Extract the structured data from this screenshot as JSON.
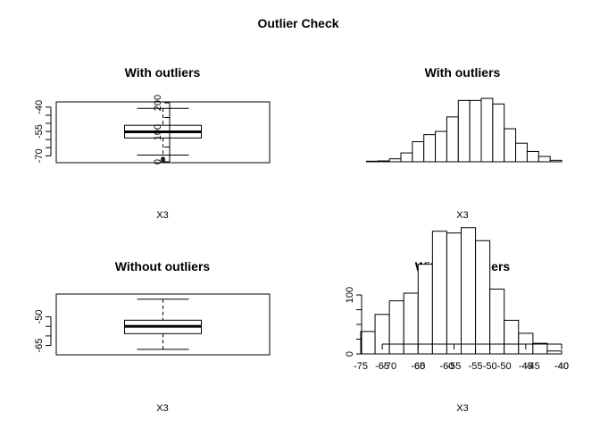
{
  "main_title": "Outlier Check",
  "chart_data": [
    {
      "panel": "top-left",
      "type": "boxplot",
      "title": "With outliers",
      "xlabel": "X3",
      "orientation": "horizontal",
      "axis_ticks": [
        -40,
        -55,
        -70
      ],
      "axis_range": [
        -72,
        -39
      ],
      "stats": {
        "min": -69.5,
        "q1": -59.0,
        "median": -55.2,
        "q3": -51.2,
        "max": -40.8
      },
      "outliers": [
        -71.8,
        -72.5,
        -73.0
      ],
      "grid": false
    },
    {
      "panel": "top-right",
      "type": "bar",
      "subtype": "histogram",
      "title": "With outliers",
      "xlabel": "X3",
      "x_ticks": [
        -75,
        -70,
        -65,
        -60,
        -55,
        -50,
        -45,
        -40
      ],
      "y_ticks": [
        0,
        100,
        200
      ],
      "xlim": [
        -75,
        -40
      ],
      "bin_edges": [
        -74,
        -72,
        -70,
        -68,
        -66,
        -64,
        -62,
        -60,
        -58,
        -56,
        -54,
        -52,
        -50,
        -48,
        -46,
        -44,
        -42,
        -40
      ],
      "values": [
        2,
        3,
        10,
        30,
        68,
        92,
        103,
        152,
        208,
        208,
        215,
        196,
        112,
        63,
        35,
        18,
        5
      ],
      "grid": false
    },
    {
      "panel": "bottom-left",
      "type": "boxplot",
      "title": "Without outliers",
      "xlabel": "X3",
      "orientation": "horizontal",
      "axis_ticks": [
        -50,
        -65
      ],
      "axis_range": [
        -68,
        -40
      ],
      "stats": {
        "min": -67.0,
        "q1": -58.8,
        "median": -55.0,
        "q3": -51.8,
        "max": -40.8
      },
      "outliers": [],
      "grid": false
    },
    {
      "panel": "bottom-right",
      "type": "bar",
      "subtype": "histogram",
      "title": "Without outliers",
      "xlabel": "X3",
      "x_ticks": [
        -65,
        -60,
        -55,
        -50,
        -45,
        -40
      ],
      "y_ticks": [
        0,
        100
      ],
      "xlim": [
        -68,
        -40
      ],
      "bin_edges": [
        -68,
        -66,
        -64,
        -62,
        -60,
        -58,
        -56,
        -54,
        -52,
        -50,
        -48,
        -46,
        -44,
        -42,
        -40
      ],
      "values": [
        38,
        67,
        90,
        103,
        152,
        208,
        205,
        214,
        192,
        110,
        57,
        35,
        18,
        5
      ],
      "grid": false
    }
  ]
}
